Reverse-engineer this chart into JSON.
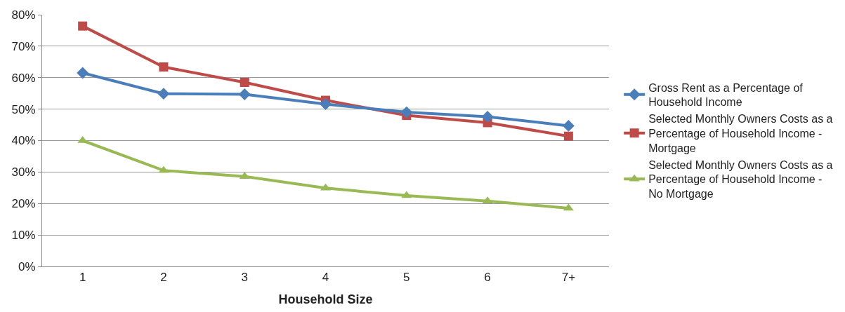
{
  "chart_data": {
    "type": "line",
    "xlabel": "Household Size",
    "categories": [
      "1",
      "2",
      "3",
      "4",
      "5",
      "6",
      "7+"
    ],
    "series": [
      {
        "name": "Gross Rent as a Percentage of Household Income",
        "color": "#4a7ebb",
        "marker": "diamond",
        "values": [
          61.5,
          54.9,
          54.7,
          51.6,
          49.0,
          47.6,
          44.7
        ]
      },
      {
        "name": "Selected Monthly Owners Costs as a Percentage of Household Income - Mortgage",
        "color": "#be4b48",
        "marker": "square",
        "values": [
          76.4,
          63.4,
          58.5,
          52.8,
          48.0,
          45.7,
          41.4
        ]
      },
      {
        "name": "Selected Monthly Owners Costs as a Percentage of Household Income - No Mortgage",
        "color": "#98b954",
        "marker": "triangle",
        "values": [
          40.0,
          30.5,
          28.6,
          24.9,
          22.5,
          20.8,
          18.5
        ]
      }
    ],
    "ylim": [
      0,
      80
    ],
    "yticks": [
      {
        "value": 0,
        "label": "0%"
      },
      {
        "value": 10,
        "label": "10%"
      },
      {
        "value": 20,
        "label": "20%"
      },
      {
        "value": 30,
        "label": "30%"
      },
      {
        "value": 40,
        "label": "40%"
      },
      {
        "value": 50,
        "label": "50%"
      },
      {
        "value": 60,
        "label": "60%"
      },
      {
        "value": 70,
        "label": "70%"
      },
      {
        "value": 80,
        "label": "80%"
      }
    ],
    "grid": "y",
    "legend": "right"
  }
}
